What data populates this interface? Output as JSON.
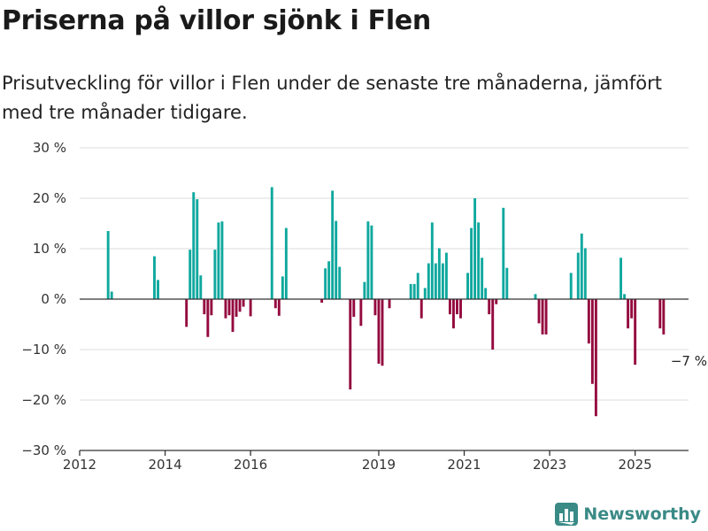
{
  "title": "Priserna på villor sjönk i Flen",
  "subtitle": "Prisutveckling för villor i Flen under de senaste tre månaderna, jämfört med tre månader tidigare.",
  "brand": "Newsworthy",
  "colors": {
    "positive": "#0fa89e",
    "negative": "#94093e",
    "grid": "#dddddd",
    "axis": "#333333",
    "brand": "#3a8a86"
  },
  "chart_data": {
    "type": "bar",
    "x_axis_type": "date",
    "ylim": [
      -30,
      30
    ],
    "y_ticks": [
      30,
      20,
      10,
      0,
      -10,
      -20,
      -30
    ],
    "y_tick_labels": [
      "30 %",
      "20 %",
      "10 %",
      "0 %",
      "−10 %",
      "−20 %",
      "−30 %"
    ],
    "x_ticks": [
      "2012-01",
      "2014-01",
      "2016-01",
      "2019-01",
      "2021-01",
      "2023-01",
      "2025-01"
    ],
    "x_tick_labels": [
      "2012",
      "2014",
      "2016",
      "2019",
      "2021",
      "2023",
      "2025"
    ],
    "xlim": [
      "2012-01",
      "2026-04"
    ],
    "grid": true,
    "annotation": {
      "text": "−7 %",
      "target": "2025-09"
    },
    "values": [
      {
        "x": "2012-09",
        "y": 13.5
      },
      {
        "x": "2012-10",
        "y": 1.5
      },
      {
        "x": "2013-10",
        "y": 8.5
      },
      {
        "x": "2013-11",
        "y": 3.8
      },
      {
        "x": "2014-07",
        "y": -5.5
      },
      {
        "x": "2014-08",
        "y": 9.8
      },
      {
        "x": "2014-09",
        "y": 21.2
      },
      {
        "x": "2014-10",
        "y": 19.8
      },
      {
        "x": "2014-11",
        "y": 4.7
      },
      {
        "x": "2014-12",
        "y": -3.0
      },
      {
        "x": "2015-01",
        "y": -7.5
      },
      {
        "x": "2015-02",
        "y": -3.2
      },
      {
        "x": "2015-03",
        "y": 9.8
      },
      {
        "x": "2015-04",
        "y": 15.2
      },
      {
        "x": "2015-05",
        "y": 15.4
      },
      {
        "x": "2015-06",
        "y": -3.8
      },
      {
        "x": "2015-07",
        "y": -3.2
      },
      {
        "x": "2015-08",
        "y": -6.5
      },
      {
        "x": "2015-09",
        "y": -3.5
      },
      {
        "x": "2015-10",
        "y": -2.5
      },
      {
        "x": "2015-11",
        "y": -1.5
      },
      {
        "x": "2016-01",
        "y": -3.4
      },
      {
        "x": "2016-07",
        "y": 22.2
      },
      {
        "x": "2016-08",
        "y": -1.8
      },
      {
        "x": "2016-09",
        "y": -3.3
      },
      {
        "x": "2016-10",
        "y": 4.5
      },
      {
        "x": "2016-11",
        "y": 14.1
      },
      {
        "x": "2017-09",
        "y": -0.7
      },
      {
        "x": "2017-10",
        "y": 6.1
      },
      {
        "x": "2017-11",
        "y": 7.5
      },
      {
        "x": "2017-12",
        "y": 21.5
      },
      {
        "x": "2018-01",
        "y": 15.5
      },
      {
        "x": "2018-02",
        "y": 6.4
      },
      {
        "x": "2018-05",
        "y": -17.9
      },
      {
        "x": "2018-06",
        "y": -3.5
      },
      {
        "x": "2018-08",
        "y": -5.3
      },
      {
        "x": "2018-09",
        "y": 3.4
      },
      {
        "x": "2018-10",
        "y": 15.4
      },
      {
        "x": "2018-11",
        "y": 14.6
      },
      {
        "x": "2018-12",
        "y": -3.2
      },
      {
        "x": "2019-01",
        "y": -12.8
      },
      {
        "x": "2019-02",
        "y": -13.2
      },
      {
        "x": "2019-04",
        "y": -1.8
      },
      {
        "x": "2019-10",
        "y": 3.0
      },
      {
        "x": "2019-11",
        "y": 3.0
      },
      {
        "x": "2019-12",
        "y": 5.2
      },
      {
        "x": "2020-01",
        "y": -3.8
      },
      {
        "x": "2020-02",
        "y": 2.2
      },
      {
        "x": "2020-03",
        "y": 7.1
      },
      {
        "x": "2020-04",
        "y": 15.2
      },
      {
        "x": "2020-05",
        "y": 7.1
      },
      {
        "x": "2020-06",
        "y": 10.1
      },
      {
        "x": "2020-07",
        "y": 7.1
      },
      {
        "x": "2020-08",
        "y": 9.2
      },
      {
        "x": "2020-09",
        "y": -3.0
      },
      {
        "x": "2020-10",
        "y": -5.8
      },
      {
        "x": "2020-11",
        "y": -3.0
      },
      {
        "x": "2020-12",
        "y": -3.8
      },
      {
        "x": "2021-02",
        "y": 5.2
      },
      {
        "x": "2021-03",
        "y": 14.1
      },
      {
        "x": "2021-04",
        "y": 20.0
      },
      {
        "x": "2021-05",
        "y": 15.2
      },
      {
        "x": "2021-06",
        "y": 8.2
      },
      {
        "x": "2021-07",
        "y": 2.2
      },
      {
        "x": "2021-08",
        "y": -3.0
      },
      {
        "x": "2021-09",
        "y": -10.0
      },
      {
        "x": "2021-10",
        "y": -1.0
      },
      {
        "x": "2021-12",
        "y": 18.1
      },
      {
        "x": "2022-01",
        "y": 6.2
      },
      {
        "x": "2022-09",
        "y": 1.0
      },
      {
        "x": "2022-10",
        "y": -4.8
      },
      {
        "x": "2022-11",
        "y": -7.0
      },
      {
        "x": "2022-12",
        "y": -7.0
      },
      {
        "x": "2023-07",
        "y": 5.2
      },
      {
        "x": "2023-09",
        "y": 9.2
      },
      {
        "x": "2023-10",
        "y": 13.0
      },
      {
        "x": "2023-11",
        "y": 10.1
      },
      {
        "x": "2023-12",
        "y": -8.8
      },
      {
        "x": "2024-01",
        "y": -16.8
      },
      {
        "x": "2024-02",
        "y": -23.2
      },
      {
        "x": "2024-09",
        "y": 8.2
      },
      {
        "x": "2024-10",
        "y": 1.0
      },
      {
        "x": "2024-11",
        "y": -5.8
      },
      {
        "x": "2024-12",
        "y": -3.8
      },
      {
        "x": "2025-01",
        "y": -13.0
      },
      {
        "x": "2025-08",
        "y": -5.8
      },
      {
        "x": "2025-09",
        "y": -7.0
      }
    ]
  }
}
